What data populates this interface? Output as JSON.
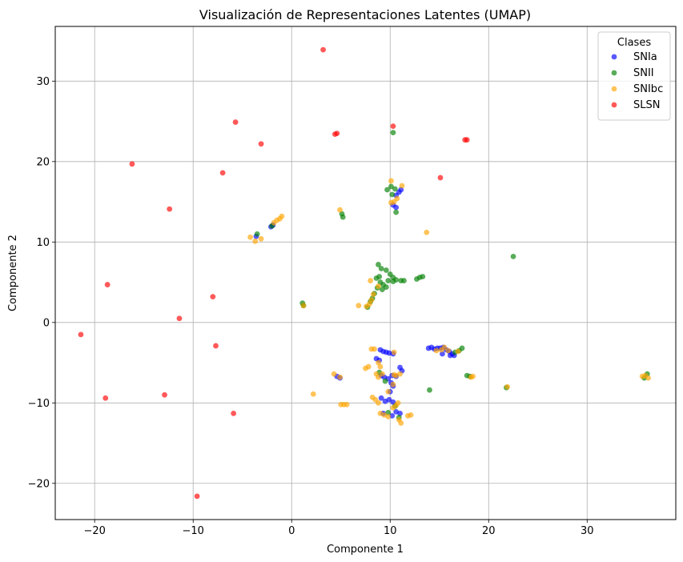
{
  "chart_data": {
    "type": "scatter",
    "title": "Visualización de Representaciones Latentes (UMAP)",
    "xlabel": "Componente 1",
    "ylabel": "Componente 2",
    "xlim": [
      -24.0,
      39.0
    ],
    "ylim": [
      -24.5,
      36.8
    ],
    "xticks": [
      -20,
      -10,
      0,
      10,
      20,
      30
    ],
    "yticks": [
      -20,
      -10,
      0,
      10,
      20,
      30
    ],
    "grid": true,
    "legend": {
      "title": "Clases",
      "placement": "top-right"
    },
    "series": [
      {
        "name": "SNIa",
        "color": "#0000ff",
        "points": [
          [
            -3.6,
            10.7
          ],
          [
            -2.1,
            11.9
          ],
          [
            -1.9,
            12.1
          ],
          [
            10.6,
            15.8
          ],
          [
            10.9,
            16.2
          ],
          [
            11.1,
            16.5
          ],
          [
            10.3,
            14.6
          ],
          [
            10.6,
            14.3
          ],
          [
            9.0,
            -3.4
          ],
          [
            9.3,
            -3.6
          ],
          [
            9.6,
            -3.7
          ],
          [
            9.9,
            -3.8
          ],
          [
            10.3,
            -3.9
          ],
          [
            9.1,
            -6.6
          ],
          [
            9.4,
            -6.8
          ],
          [
            9.8,
            -7.0
          ],
          [
            10.2,
            -6.6
          ],
          [
            10.6,
            -6.7
          ],
          [
            10.1,
            -7.5
          ],
          [
            10.3,
            -7.9
          ],
          [
            10.0,
            -8.6
          ],
          [
            9.1,
            -9.4
          ],
          [
            9.5,
            -9.8
          ],
          [
            9.9,
            -9.6
          ],
          [
            10.3,
            -9.9
          ],
          [
            10.6,
            -11.1
          ],
          [
            10.2,
            -11.6
          ],
          [
            11.0,
            -11.3
          ],
          [
            9.3,
            -11.3
          ],
          [
            11.0,
            -5.6
          ],
          [
            11.2,
            -6.0
          ],
          [
            8.6,
            -4.5
          ],
          [
            8.9,
            -4.7
          ],
          [
            13.9,
            -3.2
          ],
          [
            14.2,
            -3.1
          ],
          [
            14.5,
            -3.3
          ],
          [
            14.8,
            -3.2
          ],
          [
            15.1,
            -3.2
          ],
          [
            15.4,
            -3.1
          ],
          [
            15.7,
            -3.4
          ],
          [
            16.0,
            -3.6
          ],
          [
            16.3,
            -3.9
          ],
          [
            16.5,
            -4.1
          ],
          [
            16.1,
            -4.1
          ],
          [
            15.3,
            -3.9
          ],
          [
            4.6,
            -6.7
          ],
          [
            4.9,
            -6.9
          ]
        ]
      },
      {
        "name": "SNII",
        "color": "#008000",
        "points": [
          [
            -3.5,
            11.0
          ],
          [
            -2.0,
            12.0
          ],
          [
            1.1,
            2.4
          ],
          [
            1.2,
            2.1
          ],
          [
            10.1,
            16.9
          ],
          [
            9.7,
            16.5
          ],
          [
            10.5,
            16.6
          ],
          [
            10.2,
            15.9
          ],
          [
            10.6,
            13.7
          ],
          [
            10.3,
            23.6
          ],
          [
            5.1,
            13.5
          ],
          [
            5.2,
            13.1
          ],
          [
            22.5,
            8.2
          ],
          [
            8.8,
            7.2
          ],
          [
            9.1,
            6.7
          ],
          [
            9.6,
            6.5
          ],
          [
            10.0,
            6.0
          ],
          [
            10.3,
            5.6
          ],
          [
            10.6,
            5.3
          ],
          [
            11.1,
            5.2
          ],
          [
            11.4,
            5.2
          ],
          [
            10.3,
            5.1
          ],
          [
            9.0,
            5.0
          ],
          [
            9.3,
            4.7
          ],
          [
            9.6,
            4.4
          ],
          [
            9.2,
            4.1
          ],
          [
            8.7,
            4.3
          ],
          [
            8.9,
            5.7
          ],
          [
            8.6,
            5.5
          ],
          [
            9.8,
            5.2
          ],
          [
            8.0,
            2.6
          ],
          [
            7.7,
            1.9
          ],
          [
            8.2,
            3.0
          ],
          [
            8.4,
            3.6
          ],
          [
            12.7,
            5.4
          ],
          [
            13.0,
            5.6
          ],
          [
            13.3,
            5.7
          ],
          [
            14.0,
            -8.4
          ],
          [
            17.8,
            -6.6
          ],
          [
            18.1,
            -6.7
          ],
          [
            21.8,
            -8.1
          ],
          [
            16.6,
            -3.7
          ],
          [
            17.0,
            -3.5
          ],
          [
            17.3,
            -3.2
          ],
          [
            35.8,
            -6.9
          ],
          [
            36.1,
            -6.4
          ],
          [
            9.5,
            -7.3
          ],
          [
            10.5,
            -10.4
          ],
          [
            10.9,
            -11.8
          ],
          [
            8.9,
            -6.2
          ],
          [
            9.8,
            -11.2
          ]
        ]
      },
      {
        "name": "SNIbc",
        "color": "#ffa500",
        "points": [
          [
            -4.2,
            10.6
          ],
          [
            -3.7,
            10.1
          ],
          [
            -3.1,
            10.4
          ],
          [
            -1.8,
            12.4
          ],
          [
            -1.5,
            12.7
          ],
          [
            -1.2,
            12.9
          ],
          [
            -1.0,
            13.2
          ],
          [
            10.1,
            17.6
          ],
          [
            11.2,
            17.0
          ],
          [
            10.4,
            15.0
          ],
          [
            10.1,
            14.9
          ],
          [
            10.7,
            15.4
          ],
          [
            4.9,
            14.0
          ],
          [
            13.7,
            11.2
          ],
          [
            1.2,
            2.1
          ],
          [
            6.8,
            2.1
          ],
          [
            7.6,
            2.0
          ],
          [
            7.9,
            2.3
          ],
          [
            8.1,
            2.8
          ],
          [
            8.0,
            5.2
          ],
          [
            8.3,
            3.5
          ],
          [
            8.8,
            4.5
          ],
          [
            8.1,
            -3.3
          ],
          [
            8.4,
            -3.3
          ],
          [
            10.4,
            -3.7
          ],
          [
            7.5,
            -5.7
          ],
          [
            7.8,
            -5.5
          ],
          [
            8.8,
            -5.0
          ],
          [
            9.0,
            -5.5
          ],
          [
            8.6,
            -6.4
          ],
          [
            8.8,
            -6.8
          ],
          [
            9.2,
            -6.4
          ],
          [
            10.4,
            -6.5
          ],
          [
            10.6,
            -6.6
          ],
          [
            11.0,
            -6.4
          ],
          [
            10.3,
            -7.7
          ],
          [
            9.8,
            -8.6
          ],
          [
            8.2,
            -9.3
          ],
          [
            8.5,
            -9.6
          ],
          [
            8.8,
            -10.0
          ],
          [
            10.8,
            -10.0
          ],
          [
            10.6,
            -10.3
          ],
          [
            10.3,
            -10.6
          ],
          [
            9.0,
            -11.3
          ],
          [
            9.4,
            -11.5
          ],
          [
            9.8,
            -11.7
          ],
          [
            10.9,
            -12.1
          ],
          [
            11.1,
            -12.5
          ],
          [
            11.8,
            -11.6
          ],
          [
            12.1,
            -11.5
          ],
          [
            4.3,
            -6.4
          ],
          [
            4.9,
            -6.8
          ],
          [
            5.0,
            -10.2
          ],
          [
            5.3,
            -10.2
          ],
          [
            5.6,
            -10.2
          ],
          [
            2.2,
            -8.9
          ],
          [
            14.7,
            -3.5
          ],
          [
            15.2,
            -3.4
          ],
          [
            15.5,
            -3.1
          ],
          [
            15.9,
            -3.5
          ],
          [
            16.9,
            -3.6
          ],
          [
            18.2,
            -6.8
          ],
          [
            18.4,
            -6.7
          ],
          [
            21.9,
            -8.0
          ],
          [
            35.6,
            -6.7
          ],
          [
            35.9,
            -6.6
          ],
          [
            36.2,
            -6.9
          ]
        ]
      },
      {
        "name": "SLSN",
        "color": "#ff0000",
        "points": [
          [
            3.2,
            33.9
          ],
          [
            -5.7,
            24.9
          ],
          [
            -3.1,
            22.2
          ],
          [
            4.4,
            23.4
          ],
          [
            4.6,
            23.5
          ],
          [
            10.3,
            24.4
          ],
          [
            17.8,
            22.7
          ],
          [
            17.6,
            22.7
          ],
          [
            -16.2,
            19.7
          ],
          [
            -7.0,
            18.6
          ],
          [
            15.1,
            18.0
          ],
          [
            -12.4,
            14.1
          ],
          [
            -18.7,
            4.7
          ],
          [
            -8.0,
            3.2
          ],
          [
            -11.4,
            0.5
          ],
          [
            -21.4,
            -1.5
          ],
          [
            -7.7,
            -2.9
          ],
          [
            -18.9,
            -9.4
          ],
          [
            -12.9,
            -9.0
          ],
          [
            -5.9,
            -11.3
          ],
          [
            -9.6,
            -21.6
          ]
        ]
      }
    ]
  }
}
